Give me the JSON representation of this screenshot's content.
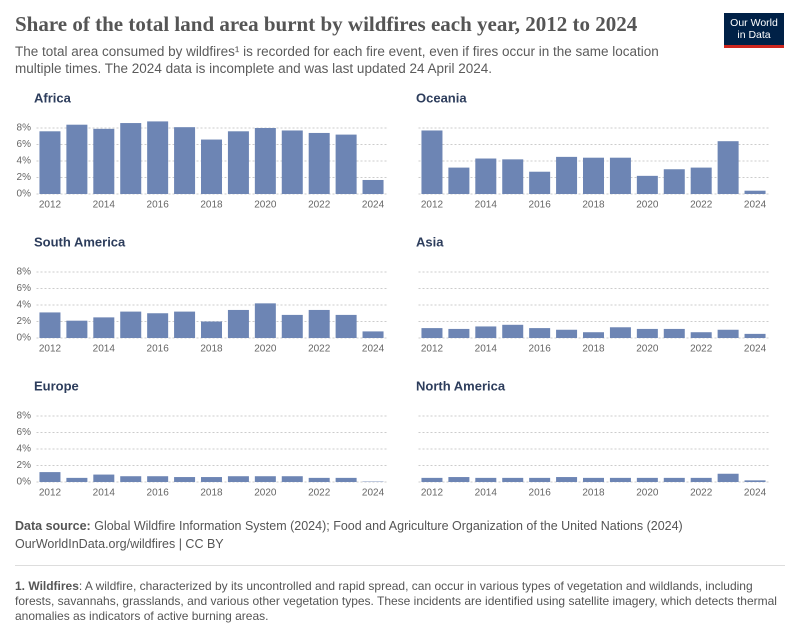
{
  "title": "Share of the total land area burnt by wildfires each year, 2012 to 2024",
  "subtitle": "The total area consumed by wildfires¹ is recorded for each fire event, even if fires occur in the same location multiple times. The 2024 data is incomplete and was last updated 24 April 2024.",
  "logo": [
    "Our World",
    "in Data"
  ],
  "chart_data": [
    {
      "type": "bar",
      "title": "Africa",
      "color": "#6d85b4",
      "categories": [
        "2012",
        null,
        "2014",
        null,
        "2016",
        null,
        "2018",
        null,
        "2020",
        null,
        "2022",
        null,
        "2024"
      ],
      "values": [
        7.6,
        8.4,
        7.9,
        8.6,
        8.8,
        8.1,
        6.6,
        7.6,
        8.0,
        7.7,
        7.4,
        7.2,
        1.7
      ],
      "ylim": [
        0,
        8
      ],
      "yticks": [
        {
          "value": 0,
          "label": "0%"
        },
        {
          "value": 2,
          "label": "2%"
        },
        {
          "value": 4,
          "label": "4%"
        },
        {
          "value": 6,
          "label": "6%"
        },
        {
          "value": 8,
          "label": "8%"
        }
      ]
    },
    {
      "type": "bar",
      "title": "Oceania",
      "color": "#6d85b4",
      "categories": [
        "2012",
        null,
        "2014",
        null,
        "2016",
        null,
        "2018",
        null,
        "2020",
        null,
        "2022",
        null,
        "2024"
      ],
      "values": [
        7.7,
        3.2,
        4.3,
        4.2,
        2.7,
        4.5,
        4.4,
        4.4,
        2.2,
        3.0,
        3.2,
        6.4,
        0.4
      ],
      "ylim": [
        0,
        8
      ],
      "yticks": [
        0,
        2,
        4,
        6,
        8
      ]
    },
    {
      "type": "bar",
      "title": "South America",
      "color": "#6d85b4",
      "categories": [
        "2012",
        null,
        "2014",
        null,
        "2016",
        null,
        "2018",
        null,
        "2020",
        null,
        "2022",
        null,
        "2024"
      ],
      "values": [
        3.1,
        2.1,
        2.5,
        3.2,
        3.0,
        3.2,
        2.0,
        3.4,
        4.2,
        2.8,
        3.4,
        2.8,
        0.8
      ],
      "ylim": [
        0,
        8
      ],
      "yticks": [
        {
          "value": 0,
          "label": "0%"
        },
        {
          "value": 2,
          "label": "2%"
        },
        {
          "value": 4,
          "label": "4%"
        },
        {
          "value": 6,
          "label": "6%"
        },
        {
          "value": 8,
          "label": "8%"
        }
      ]
    },
    {
      "type": "bar",
      "title": "Asia",
      "color": "#6d85b4",
      "categories": [
        "2012",
        null,
        "2014",
        null,
        "2016",
        null,
        "2018",
        null,
        "2020",
        null,
        "2022",
        null,
        "2024"
      ],
      "values": [
        1.2,
        1.1,
        1.4,
        1.6,
        1.2,
        1.0,
        0.7,
        1.3,
        1.1,
        1.1,
        0.7,
        1.0,
        0.5
      ],
      "ylim": [
        0,
        8
      ],
      "yticks": [
        0,
        2,
        4,
        6,
        8
      ]
    },
    {
      "type": "bar",
      "title": "Europe",
      "color": "#6d85b4",
      "categories": [
        "2012",
        null,
        "2014",
        null,
        "2016",
        null,
        "2018",
        null,
        "2020",
        null,
        "2022",
        null,
        "2024"
      ],
      "values": [
        1.2,
        0.5,
        0.9,
        0.7,
        0.7,
        0.6,
        0.6,
        0.7,
        0.7,
        0.7,
        0.5,
        0.5,
        0.05
      ],
      "ylim": [
        0,
        8
      ],
      "yticks": [
        {
          "value": 0,
          "label": "0%"
        },
        {
          "value": 2,
          "label": "2%"
        },
        {
          "value": 4,
          "label": "4%"
        },
        {
          "value": 6,
          "label": "6%"
        },
        {
          "value": 8,
          "label": "8%"
        }
      ]
    },
    {
      "type": "bar",
      "title": "North America",
      "color": "#6d85b4",
      "categories": [
        "2012",
        null,
        "2014",
        null,
        "2016",
        null,
        "2018",
        null,
        "2020",
        null,
        "2022",
        null,
        "2024"
      ],
      "values": [
        0.5,
        0.6,
        0.5,
        0.5,
        0.5,
        0.6,
        0.5,
        0.5,
        0.5,
        0.5,
        0.5,
        1.0,
        0.2
      ],
      "ylim": [
        0,
        8
      ],
      "yticks": [
        0,
        2,
        4,
        6,
        8
      ]
    }
  ],
  "source": {
    "label": "Data source:",
    "text": "Global Wildfire Information System (2024); Food and Agriculture Organization of the United Nations (2024)",
    "url": "OurWorldInData.org/wildfires | CC BY"
  },
  "footnote": {
    "term": "1. Wildfires",
    "text": ": A wildfire, characterized by its uncontrolled and rapid spread, can occur in various types of vegetation and wildlands, including forests, savannahs, grasslands, and various other vegetation types. These incidents are identified using satellite imagery, which detects thermal anomalies as indicators of active burning areas."
  }
}
